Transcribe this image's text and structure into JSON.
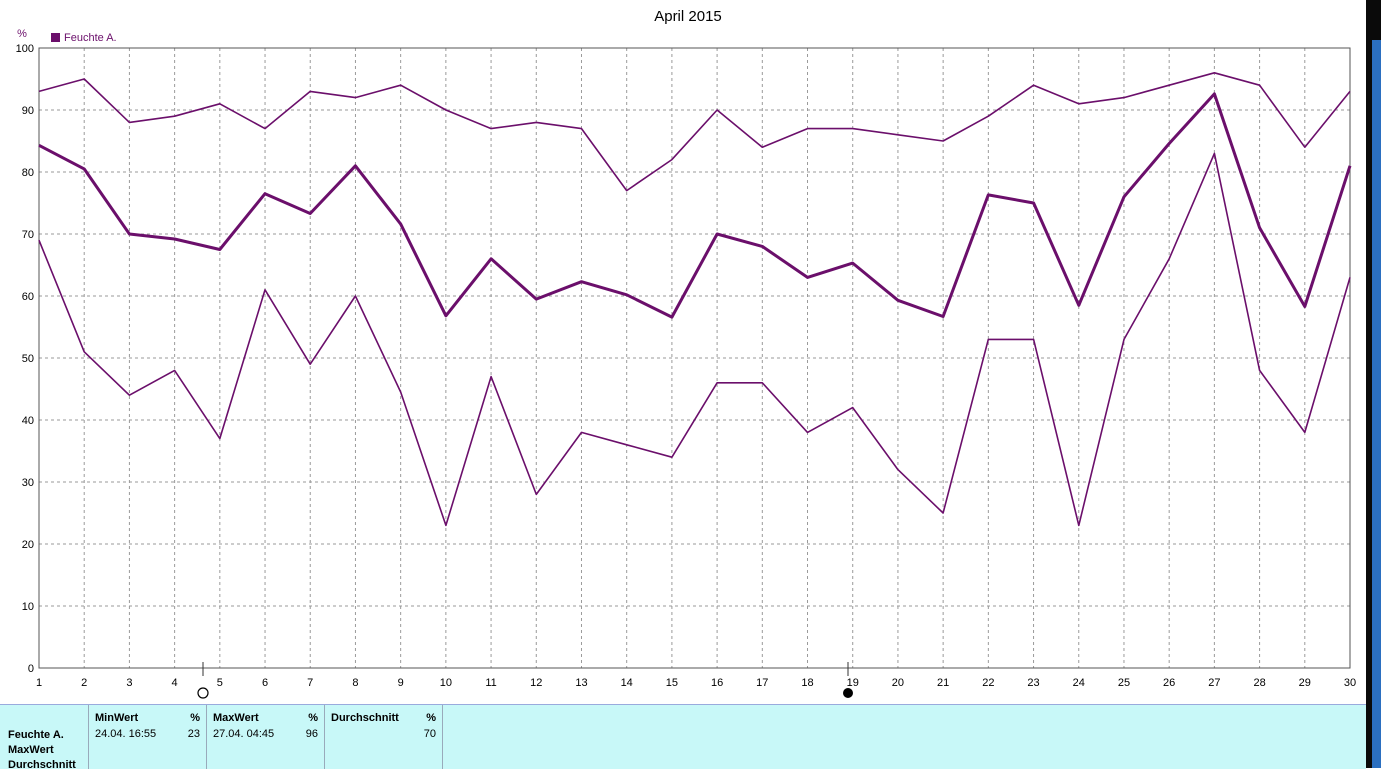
{
  "chart_data": {
    "type": "line",
    "title": "April 2015",
    "ylabel": "%",
    "ylim": [
      0,
      100
    ],
    "yticks": [
      0,
      10,
      20,
      30,
      40,
      50,
      60,
      70,
      80,
      90,
      100
    ],
    "x": [
      1,
      2,
      3,
      4,
      5,
      6,
      7,
      8,
      9,
      10,
      11,
      12,
      13,
      14,
      15,
      16,
      17,
      18,
      19,
      20,
      21,
      22,
      23,
      24,
      25,
      26,
      27,
      28,
      29,
      30
    ],
    "legend": {
      "label": "Feuchte A.",
      "color": "#6b0f6b",
      "position": "top-left"
    },
    "grid": true,
    "series": [
      {
        "values": [
          93,
          95,
          88,
          89,
          91,
          87,
          93,
          92,
          94,
          90,
          87,
          88,
          87,
          77,
          82,
          90,
          84,
          87,
          87,
          86,
          85,
          89,
          94,
          91,
          92,
          94,
          96,
          94,
          84,
          93
        ]
      },
      {
        "values": [
          84.3,
          80.5,
          70,
          69.2,
          67.5,
          76.5,
          73.3,
          81,
          71.6,
          56.8,
          66,
          59.5,
          62.3,
          60.2,
          56.6,
          70,
          68,
          63,
          65.3,
          59.3,
          56.7,
          76.3,
          75,
          58.5,
          76,
          84.6,
          92.6,
          71,
          58.3,
          81
        ]
      },
      {
        "values": [
          69,
          51,
          44,
          48,
          37,
          61,
          49,
          60,
          44.5,
          23,
          47,
          28,
          38,
          36,
          34,
          46,
          46,
          38,
          42,
          32,
          25,
          53,
          53,
          23,
          53,
          66,
          83,
          48,
          38,
          63
        ]
      }
    ]
  },
  "summary": {
    "row_labels": [
      "Feuchte A.",
      "MaxWert",
      "Durchschnitt"
    ],
    "columns": [
      {
        "header": "MinWert",
        "unit": "%",
        "time": "24.04.  16:55",
        "value": "23"
      },
      {
        "header": "MaxWert",
        "unit": "%",
        "time": "27.04.  04:45",
        "value": "96"
      },
      {
        "header": "Durchschnitt",
        "unit": "%",
        "time": "",
        "value": "70"
      }
    ]
  },
  "colors": {
    "series": "#6b0f6b",
    "grid": "#9a9a9a",
    "axis": "#555555",
    "footer_bg": "#c8f8f8"
  }
}
